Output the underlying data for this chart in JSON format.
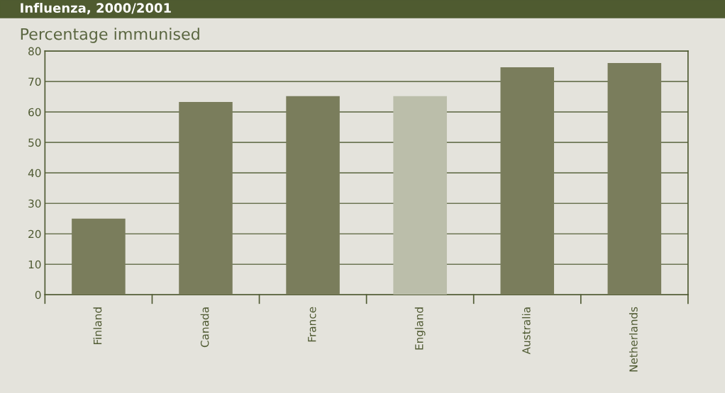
{
  "chart_data": {
    "type": "bar",
    "title": "Influenza, 2000/2001",
    "subtitle": "Percentage immunised",
    "categories": [
      "Finland",
      "Canada",
      "France",
      "England",
      "Australia",
      "Netherlands"
    ],
    "values": [
      25,
      63.3,
      65.2,
      65.2,
      74.7,
      76.1
    ],
    "colors": [
      "#7a7d5c",
      "#7a7d5c",
      "#7a7d5c",
      "#bbbeaa",
      "#7a7d5c",
      "#7a7d5c"
    ],
    "ylim": [
      0,
      80
    ],
    "yticks": [
      0,
      10,
      20,
      30,
      40,
      50,
      60,
      70,
      80
    ],
    "grid": "y"
  }
}
